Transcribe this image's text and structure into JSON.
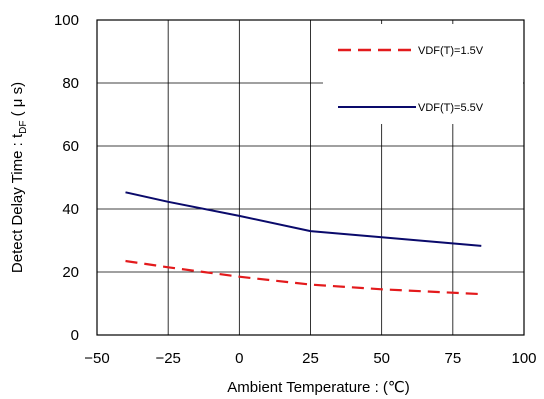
{
  "chart_data": {
    "type": "line",
    "title": "",
    "xlabel": "Ambient Temperature : (℃)",
    "ylabel_parts": {
      "prefix": "Detect Delay Time : t",
      "subscript": "DF",
      "suffix": " ( μ s)"
    },
    "xlim": [
      -50,
      100
    ],
    "ylim": [
      0,
      100
    ],
    "xticks": [
      -50,
      -25,
      0,
      25,
      50,
      75,
      100
    ],
    "yticks": [
      0,
      20,
      40,
      60,
      80,
      100
    ],
    "xtick_labels": [
      "−50",
      "−25",
      "0",
      "25",
      "50",
      "75",
      "100"
    ],
    "ytick_labels": [
      "0",
      "20",
      "40",
      "60",
      "80",
      "100"
    ],
    "grid": true,
    "legend_position": "top-right",
    "series": [
      {
        "name": "VDF(T)=1.5V",
        "color": "#e31a1c",
        "style": "dashed",
        "x": [
          -40,
          -25,
          0,
          25,
          50,
          85
        ],
        "y": [
          23.5,
          21.5,
          18.5,
          16,
          14.5,
          13
        ]
      },
      {
        "name": "VDF(T)=5.5V",
        "color": "#0a0a6b",
        "style": "solid",
        "x": [
          -40,
          -25,
          0,
          25,
          50,
          85
        ],
        "y": [
          45.3,
          42.3,
          37.8,
          33,
          31,
          28.3
        ]
      }
    ]
  }
}
